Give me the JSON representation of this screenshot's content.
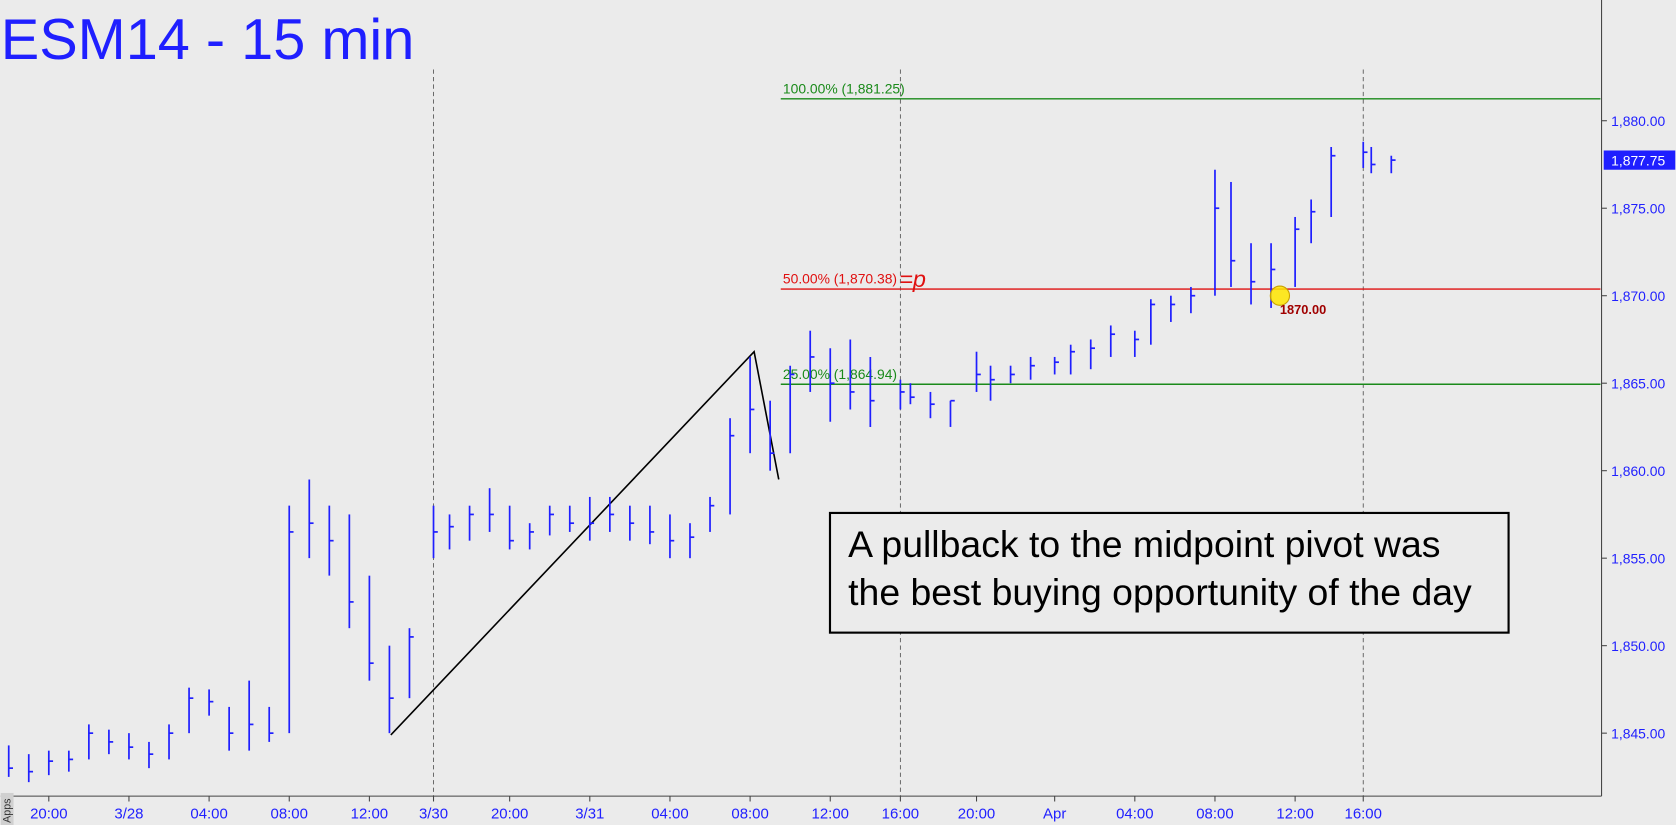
{
  "chart_data": {
    "type": "ohlc",
    "title": "ESM14 - 15 min",
    "sidebar_label": "Apps",
    "color": "#1f1fff",
    "xlim": [
      -2.4,
      77.44
    ],
    "ylim": [
      1841.4,
      1886.9
    ],
    "xticks": [
      {
        "value": 0,
        "label": "20:00"
      },
      {
        "value": 4,
        "label": "3/28"
      },
      {
        "value": 8,
        "label": "04:00"
      },
      {
        "value": 12,
        "label": "08:00"
      },
      {
        "value": 16,
        "label": "12:00"
      },
      {
        "value": 19.2,
        "label": "3/30"
      },
      {
        "value": 23,
        "label": "20:00"
      },
      {
        "value": 27,
        "label": "3/31"
      },
      {
        "value": 31,
        "label": "04:00"
      },
      {
        "value": 35,
        "label": "08:00"
      },
      {
        "value": 39,
        "label": "12:00"
      },
      {
        "value": 42.5,
        "label": "16:00"
      },
      {
        "value": 46.3,
        "label": "20:00"
      },
      {
        "value": 50.2,
        "label": "Apr"
      },
      {
        "value": 54.2,
        "label": "04:00"
      },
      {
        "value": 58.2,
        "label": "08:00"
      },
      {
        "value": 62.2,
        "label": "12:00"
      },
      {
        "value": 65.6,
        "label": "16:00"
      }
    ],
    "yticks": [
      {
        "value": 1845,
        "label": "1,845.00"
      },
      {
        "value": 1850,
        "label": "1,850.00"
      },
      {
        "value": 1855,
        "label": "1,855.00"
      },
      {
        "value": 1860,
        "label": "1,860.00"
      },
      {
        "value": 1865,
        "label": "1,865.00"
      },
      {
        "value": 1870,
        "label": "1,870.00"
      },
      {
        "value": 1875,
        "label": "1,875.00"
      },
      {
        "value": 1880,
        "label": "1,880.00"
      }
    ],
    "session_lines": [
      19.2,
      42.5,
      65.6
    ],
    "x": [
      -2,
      -1,
      0,
      1,
      2,
      3,
      4,
      5,
      6,
      7,
      8,
      9,
      10,
      11,
      12,
      13,
      14,
      15,
      16,
      17,
      18,
      19.2,
      20,
      21,
      22,
      23,
      24,
      25,
      26,
      27,
      28,
      29,
      30,
      31,
      32,
      33,
      34,
      35,
      36,
      37,
      38,
      39,
      40,
      41,
      42.5,
      43,
      44,
      45,
      46.3,
      47,
      48,
      49,
      50.2,
      51,
      52,
      53,
      54.2,
      55,
      56,
      57,
      58.2,
      59,
      60,
      61,
      62.2,
      63,
      64,
      65.6,
      66,
      67
    ],
    "high": [
      1844.3,
      1843.8,
      1844,
      1844,
      1845.5,
      1845.2,
      1845,
      1844.5,
      1845.5,
      1847.6,
      1847.5,
      1846.5,
      1848,
      1846.5,
      1858,
      1859.5,
      1858,
      1857.5,
      1854,
      1850,
      1851,
      1858,
      1857.5,
      1858,
      1859,
      1858,
      1857,
      1858,
      1858,
      1858.5,
      1858.5,
      1858,
      1858,
      1857.5,
      1857,
      1858.5,
      1863,
      1866.5,
      1864,
      1866,
      1868,
      1867,
      1867.5,
      1866.5,
      1865.2,
      1865,
      1864.5,
      1864,
      1866.8,
      1866,
      1866,
      1866.5,
      1866.5,
      1867.2,
      1867.5,
      1868.3,
      1868,
      1869.8,
      1870,
      1870.5,
      1877.2,
      1876.5,
      1873,
      1873,
      1874.5,
      1875.5,
      1878.5,
      1878.8,
      1878.5,
      1878
    ],
    "low": [
      1842.5,
      1842.2,
      1842.6,
      1842.8,
      1843.5,
      1843.8,
      1843.5,
      1843,
      1843.5,
      1845,
      1846,
      1844,
      1844,
      1844.5,
      1845,
      1855,
      1854,
      1851,
      1848,
      1845,
      1847,
      1855,
      1855.5,
      1856,
      1856.5,
      1855.5,
      1855.5,
      1856.3,
      1856.5,
      1856,
      1856.5,
      1856,
      1855.8,
      1855,
      1855,
      1856.5,
      1857.5,
      1861,
      1860,
      1861,
      1864.5,
      1862.8,
      1863.5,
      1862.5,
      1863.5,
      1863.8,
      1863,
      1862.5,
      1864.5,
      1864,
      1865,
      1865.2,
      1865.5,
      1865.5,
      1865.8,
      1866.5,
      1866.5,
      1867.2,
      1868.5,
      1869,
      1870,
      1870.5,
      1869.5,
      1869.3,
      1870.5,
      1873,
      1874.5,
      1877.3,
      1877,
      1877
    ],
    "close": [
      1843,
      1842.8,
      1843.4,
      1843.5,
      1845,
      1844.5,
      1844.2,
      1843.8,
      1845,
      1847,
      1846.8,
      1845,
      1845.5,
      1845,
      1856.5,
      1857,
      1856,
      1852.5,
      1849,
      1847,
      1850.5,
      1856.5,
      1856.8,
      1857.5,
      1857.5,
      1856,
      1856.5,
      1857.5,
      1857,
      1857,
      1857.5,
      1857,
      1856.5,
      1856,
      1856.2,
      1858,
      1862,
      1863.5,
      1861,
      1865.5,
      1866.5,
      1865,
      1864.5,
      1864,
      1864.5,
      1864.2,
      1863.8,
      1864,
      1865.5,
      1865.2,
      1865.5,
      1866,
      1866.2,
      1866.8,
      1867,
      1867.8,
      1867.5,
      1869.5,
      1869.5,
      1870,
      1875,
      1872,
      1870.8,
      1871.5,
      1873.8,
      1874.8,
      1878,
      1878.2,
      1877.5,
      1877.75
    ],
    "last_price": {
      "value": 1877.75,
      "label": "1,877.75"
    },
    "trendline": {
      "x": [
        17.07,
        35.2,
        36.43
      ],
      "y": [
        1844.9,
        1866.8,
        1859.5
      ]
    },
    "fib_start_x": 36.53,
    "fib_levels": [
      {
        "label": "100.00% (1,881.25)",
        "value": 1881.25,
        "color": "#1a8a1a"
      },
      {
        "label": "50.00% (1,870.38)",
        "value": 1870.38,
        "color": "#e01010"
      },
      {
        "label": "25.00% (1,864.94)",
        "value": 1864.94,
        "color": "#1a8a1a"
      }
    ],
    "pivot_tag": "=p",
    "marker": {
      "x": 61.44,
      "value": 1870,
      "label": "1870.00"
    },
    "annotation": [
      "A pullback to the midpoint pivot was",
      "the best buying opportunity of the day"
    ]
  }
}
